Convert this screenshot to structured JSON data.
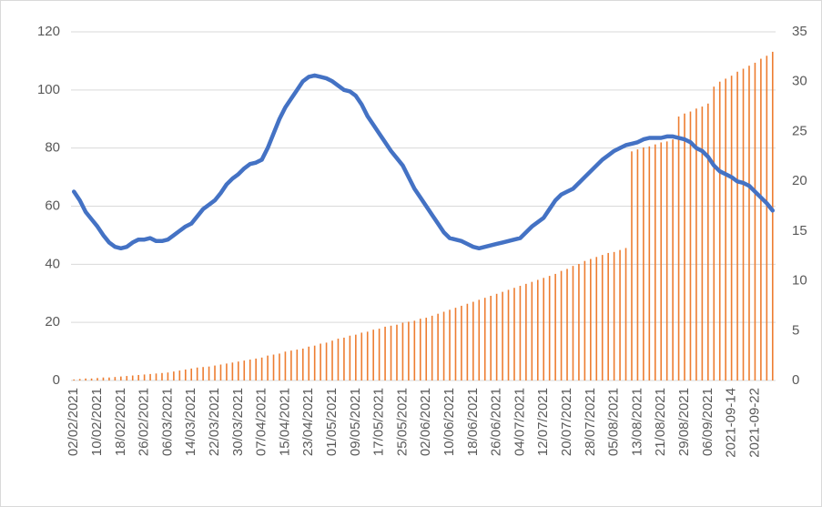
{
  "chart_data": {
    "type": "bar-line",
    "categories": [
      "02/02/2021",
      null,
      null,
      null,
      "10/02/2021",
      null,
      null,
      null,
      "18/02/2021",
      null,
      null,
      null,
      "26/02/2021",
      null,
      null,
      null,
      "06/03/2021",
      null,
      null,
      null,
      "14/03/2021",
      null,
      null,
      null,
      "22/03/2021",
      null,
      null,
      null,
      "30/03/2021",
      null,
      null,
      null,
      "07/04/2021",
      null,
      null,
      null,
      "15/04/2021",
      null,
      null,
      null,
      "23/04/2021",
      null,
      null,
      null,
      "01/05/2021",
      null,
      null,
      null,
      "09/05/2021",
      null,
      null,
      null,
      "17/05/2021",
      null,
      null,
      null,
      "25/05/2021",
      null,
      null,
      null,
      "02/06/2021",
      null,
      null,
      null,
      "10/06/2021",
      null,
      null,
      null,
      "18/06/2021",
      null,
      null,
      null,
      "26/06/2021",
      null,
      null,
      null,
      "04/07/2021",
      null,
      null,
      null,
      "12/07/2021",
      null,
      null,
      null,
      "20/07/2021",
      null,
      null,
      null,
      "28/07/2021",
      null,
      null,
      null,
      "05/08/2021",
      null,
      null,
      null,
      "13/08/2021",
      null,
      null,
      null,
      "21/08/2021",
      null,
      null,
      null,
      "29/08/2021",
      null,
      null,
      null,
      "06/09/2021",
      null,
      null,
      null,
      "2021-09-14",
      null,
      null,
      null,
      "2021-09-22",
      null,
      null,
      null
    ],
    "series": [
      {
        "type": "bar",
        "axis": "y2",
        "color": "#ed7d31",
        "values": [
          0.1,
          0.15,
          0.2,
          0.2,
          0.25,
          0.3,
          0.3,
          0.35,
          0.4,
          0.45,
          0.5,
          0.55,
          0.6,
          0.65,
          0.7,
          0.75,
          0.8,
          0.9,
          1,
          1.1,
          1.2,
          1.3,
          1.35,
          1.4,
          1.5,
          1.6,
          1.7,
          1.8,
          1.9,
          2,
          2.1,
          2.2,
          2.3,
          2.5,
          2.6,
          2.7,
          2.9,
          3,
          3.1,
          3.2,
          3.4,
          3.5,
          3.7,
          3.8,
          4,
          4.2,
          4.3,
          4.5,
          4.6,
          4.8,
          4.9,
          5.1,
          5.2,
          5.4,
          5.5,
          5.6,
          5.8,
          5.9,
          6,
          6.2,
          6.3,
          6.5,
          6.7,
          6.9,
          7.1,
          7.3,
          7.5,
          7.7,
          7.9,
          8.1,
          8.3,
          8.5,
          8.7,
          8.9,
          9.1,
          9.3,
          9.5,
          9.7,
          9.9,
          10.1,
          10.3,
          10.5,
          10.7,
          11,
          11.2,
          11.5,
          11.7,
          12,
          12.2,
          12.4,
          12.6,
          12.8,
          12.9,
          13.1,
          13.3,
          23,
          23.2,
          23.4,
          23.5,
          23.7,
          23.9,
          24,
          24.2,
          26.5,
          26.8,
          27,
          27.3,
          27.5,
          27.8,
          29.5,
          30,
          30.3,
          30.6,
          31,
          31.3,
          31.6,
          31.9,
          32.3,
          32.6,
          33
        ]
      },
      {
        "type": "line",
        "axis": "y",
        "color": "#4472c4",
        "values": [
          65,
          62,
          58,
          55.5,
          53,
          50,
          47.5,
          46,
          45.5,
          46,
          47.5,
          48.5,
          48.5,
          49,
          48,
          48,
          48.5,
          50,
          51.5,
          53,
          54,
          56.5,
          59,
          60.5,
          62,
          64.5,
          67.5,
          69.5,
          71,
          73,
          74.5,
          75,
          76,
          80,
          85,
          90,
          94,
          97,
          100,
          103,
          104.5,
          105,
          104.5,
          104,
          103,
          101.5,
          100,
          99.5,
          98,
          95,
          91,
          88,
          85,
          82,
          79,
          76.5,
          74,
          70,
          66,
          63,
          60,
          57,
          54,
          51,
          49,
          48.5,
          48,
          47,
          46,
          45.5,
          46,
          46.5,
          47,
          47.5,
          48,
          48.5,
          49,
          51,
          53,
          54.5,
          56,
          59,
          62,
          64,
          65,
          66,
          68,
          70,
          72,
          74,
          76,
          77.5,
          79,
          80,
          81,
          81.5,
          82,
          83,
          83.5,
          83.5,
          83.5,
          84,
          84,
          83.5,
          83,
          82,
          80,
          79,
          77,
          74,
          72,
          71,
          70,
          68.5,
          68,
          67,
          65,
          63,
          61,
          58.5
        ]
      }
    ],
    "ylim": [
      0,
      120
    ],
    "yticks": [
      0,
      20,
      40,
      60,
      80,
      100,
      120
    ],
    "y2lim": [
      0,
      35
    ],
    "y2ticks": [
      0,
      5,
      10,
      15,
      20,
      25,
      30,
      35
    ],
    "grid": true
  }
}
